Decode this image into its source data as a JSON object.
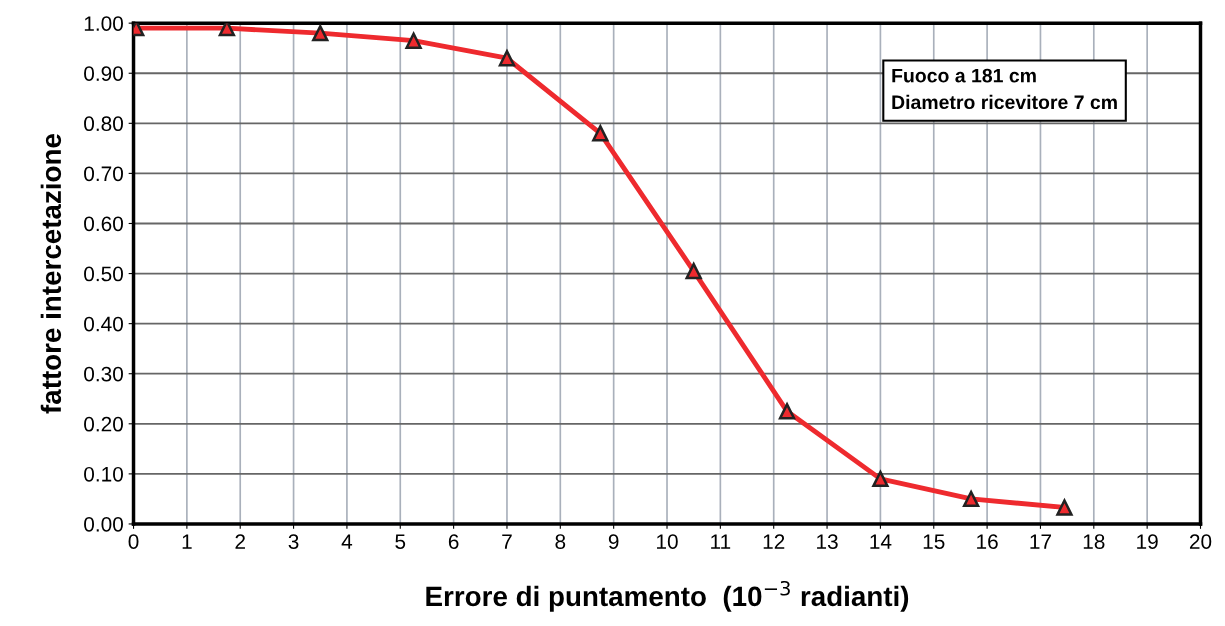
{
  "chart_data": {
    "type": "line",
    "xlabel": "Errore di puntamento  (10$^{−3}$ radianti)",
    "ylabel": "fattore intercetazione",
    "x": [
      0.05,
      1.75,
      3.5,
      5.25,
      7.0,
      8.75,
      10.5,
      12.25,
      14.0,
      15.7,
      17.45
    ],
    "series": [
      {
        "color": "#ee2a2e",
        "values": [
          0.99,
          0.99,
          0.98,
          0.965,
          0.93,
          0.78,
          0.505,
          0.225,
          0.09,
          0.05,
          0.033
        ]
      }
    ],
    "marker": "triangle",
    "line_style": "solid",
    "grid": true,
    "xlim": [
      0,
      20
    ],
    "xticks": [
      0,
      1,
      2,
      3,
      4,
      5,
      6,
      7,
      8,
      9,
      10,
      11,
      12,
      13,
      14,
      15,
      16,
      17,
      18,
      19,
      20
    ],
    "ylim": [
      0,
      1
    ],
    "yticks": [
      {
        "value": 0,
        "label": "0.00"
      },
      {
        "value": 0.1,
        "label": "0.10"
      },
      {
        "value": 0.2,
        "label": "0.20"
      },
      {
        "value": 0.3,
        "label": "0.30"
      },
      {
        "value": 0.4,
        "label": "0.40"
      },
      {
        "value": 0.5,
        "label": "0.50"
      },
      {
        "value": 0.6,
        "label": "0.60"
      },
      {
        "value": 0.7,
        "label": "0.70"
      },
      {
        "value": 0.8,
        "label": "0.80"
      },
      {
        "value": 0.9,
        "label": "0.90"
      },
      {
        "value": 1,
        "label": "1.00"
      }
    ],
    "annotations": [
      "Fuoco a 181 cm",
      "Diametro ricevitore 7 cm"
    ]
  }
}
